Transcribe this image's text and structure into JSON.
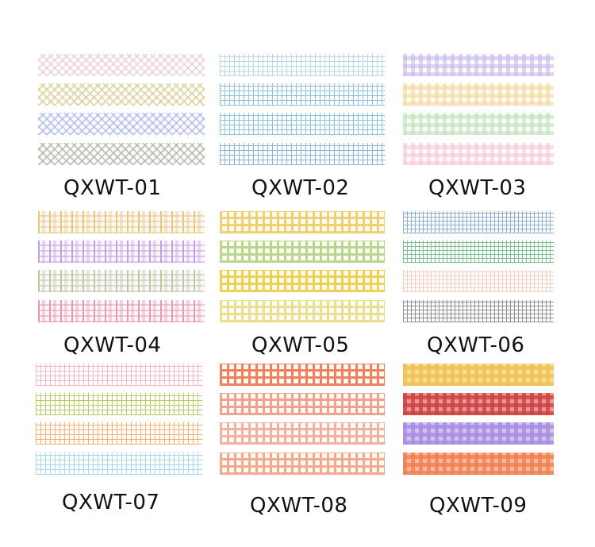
{
  "products": [
    {
      "code": "QXWT-01",
      "pattern": "diagonal",
      "tapes": [
        "#e8c8d8",
        "#d8c98a",
        "#aab4e8",
        "#a9b1a0"
      ]
    },
    {
      "code": "QXWT-02",
      "pattern": "grid",
      "tapes": [
        "#b8d8e4",
        "#8cc4e0",
        "#8cc4e0",
        "#8cb4d4"
      ]
    },
    {
      "code": "QXWT-03",
      "pattern": "gingham",
      "tapes": [
        "#c9b8ec",
        "#f5d79a",
        "#bfe3b8",
        "#f5c8d4"
      ]
    },
    {
      "code": "QXWT-04",
      "pattern": "tartan",
      "tapes": [
        "#e8c870",
        "#c4a0e0",
        "#c0c8a0",
        "#e89aa8"
      ]
    },
    {
      "code": "QXWT-05",
      "pattern": "plaid",
      "tapes": [
        "#f0d070",
        "#b8d890",
        "#f0d050",
        "#e8e090"
      ]
    },
    {
      "code": "QXWT-06",
      "pattern": "fine-grid",
      "tapes": [
        "#8cb0d0",
        "#80c090",
        "#f4cfc0",
        "#909090"
      ]
    },
    {
      "code": "QXWT-07",
      "pattern": "grid",
      "tapes": [
        "#f4b8c4",
        "#b8cc60",
        "#f8b070",
        "#a8d8f0"
      ]
    },
    {
      "code": "QXWT-08",
      "pattern": "plaid",
      "tapes": [
        "#f08060",
        "#f4a090",
        "#f4b0a0",
        "#f4a890"
      ]
    },
    {
      "code": "QXWT-09",
      "pattern": "gingham-bold",
      "tapes": [
        "#f0c050",
        "#d04040",
        "#a88ce0",
        "#f08050"
      ]
    }
  ]
}
